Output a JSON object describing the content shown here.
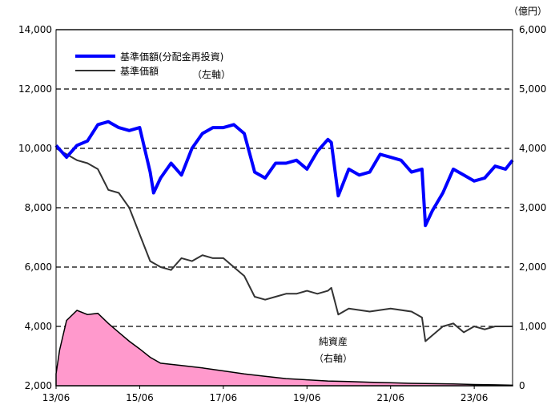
{
  "chart_data": {
    "type": "line",
    "title": "",
    "x_ticks": [
      "13/06",
      "15/06",
      "17/06",
      "19/06",
      "21/06",
      "23/06"
    ],
    "x_range": [
      "2013-06",
      "2024-05"
    ],
    "left_axis": {
      "ylim": [
        2000,
        14000
      ],
      "ticks": [
        "2,000",
        "4,000",
        "6,000",
        "8,000",
        "10,000",
        "12,000",
        "14,000"
      ]
    },
    "right_axis": {
      "unit": "（億円）",
      "ylim": [
        0,
        6000
      ],
      "ticks": [
        "0",
        "1,000",
        "2,000",
        "3,000",
        "4,000",
        "5,000",
        "6,000"
      ]
    },
    "grid": "horizontal dashed",
    "legend": {
      "placement": "top-left",
      "items": [
        {
          "label": "基準価額(分配金再投資)",
          "color": "#0000ff"
        },
        {
          "label": "基準価額",
          "color": "#333333"
        }
      ],
      "axis_note": "（左軸）"
    },
    "annotations": [
      {
        "text": "純資産",
        "target": "net_assets"
      },
      {
        "text": "（右軸）",
        "target": "net_assets"
      }
    ],
    "series": [
      {
        "name": "基準価額(分配金再投資)",
        "axis": "left",
        "color": "#0000ff",
        "x": [
          "2013-06",
          "2013-09",
          "2013-12",
          "2014-03",
          "2014-06",
          "2014-09",
          "2014-12",
          "2015-03",
          "2015-06",
          "2015-09",
          "2015-10",
          "2015-12",
          "2016-03",
          "2016-06",
          "2016-09",
          "2016-12",
          "2017-03",
          "2017-06",
          "2017-09",
          "2017-12",
          "2018-03",
          "2018-06",
          "2018-09",
          "2018-12",
          "2019-03",
          "2019-06",
          "2019-09",
          "2019-12",
          "2020-01",
          "2020-03",
          "2020-06",
          "2020-09",
          "2020-12",
          "2021-03",
          "2021-06",
          "2021-09",
          "2021-12",
          "2022-03",
          "2022-04",
          "2022-06",
          "2022-09",
          "2022-12",
          "2023-03",
          "2023-06",
          "2023-09",
          "2023-12",
          "2024-03",
          "2024-05"
        ],
        "values": [
          10100,
          9700,
          10100,
          10250,
          10800,
          10900,
          10700,
          10600,
          10700,
          9200,
          8500,
          9000,
          9500,
          9100,
          10000,
          10500,
          10700,
          10700,
          10800,
          10500,
          9200,
          9000,
          9500,
          9500,
          9600,
          9300,
          9900,
          10300,
          10200,
          8400,
          9300,
          9100,
          9200,
          9800,
          9700,
          9600,
          9200,
          9300,
          7400,
          7900,
          8500,
          9300,
          9100,
          8900,
          9000,
          9400,
          9300,
          9600
        ]
      },
      {
        "name": "基準価額",
        "axis": "left",
        "color": "#333333",
        "x": [
          "2013-06",
          "2013-09",
          "2013-12",
          "2014-03",
          "2014-06",
          "2014-09",
          "2014-12",
          "2015-03",
          "2015-06",
          "2015-09",
          "2015-12",
          "2016-03",
          "2016-06",
          "2016-09",
          "2016-12",
          "2017-03",
          "2017-06",
          "2017-09",
          "2017-12",
          "2018-03",
          "2018-06",
          "2018-09",
          "2018-12",
          "2019-03",
          "2019-06",
          "2019-09",
          "2019-12",
          "2020-01",
          "2020-03",
          "2020-06",
          "2020-12",
          "2021-06",
          "2021-12",
          "2022-03",
          "2022-04",
          "2022-06",
          "2022-09",
          "2022-12",
          "2023-03",
          "2023-06",
          "2023-09",
          "2023-12",
          "2024-03",
          "2024-05"
        ],
        "values": [
          10000,
          9800,
          9600,
          9500,
          9300,
          8600,
          8500,
          8000,
          7100,
          6200,
          6000,
          5900,
          6300,
          6200,
          6400,
          6300,
          6300,
          6000,
          5700,
          5000,
          4900,
          5000,
          5100,
          5100,
          5200,
          5100,
          5200,
          5300,
          4400,
          4600,
          4500,
          4600,
          4500,
          4300,
          3500,
          3700,
          4000,
          4100,
          3800,
          4000,
          3900,
          4000,
          4000,
          4000
        ]
      },
      {
        "name": "純資産",
        "axis": "right",
        "type": "area",
        "color": "#ff99cc",
        "x": [
          "2013-06",
          "2013-07",
          "2013-09",
          "2013-12",
          "2014-03",
          "2014-06",
          "2014-09",
          "2014-12",
          "2015-03",
          "2015-06",
          "2015-09",
          "2015-12",
          "2016-06",
          "2016-12",
          "2017-06",
          "2017-12",
          "2018-06",
          "2018-12",
          "2019-06",
          "2019-12",
          "2020-06",
          "2020-12",
          "2021-06",
          "2021-12",
          "2022-06",
          "2022-12",
          "2023-06",
          "2023-12",
          "2024-05"
        ],
        "values": [
          200,
          600,
          1100,
          1270,
          1200,
          1220,
          1050,
          900,
          750,
          620,
          480,
          380,
          340,
          300,
          250,
          200,
          160,
          120,
          100,
          80,
          70,
          60,
          50,
          40,
          35,
          30,
          20,
          15,
          10
        ]
      }
    ]
  }
}
